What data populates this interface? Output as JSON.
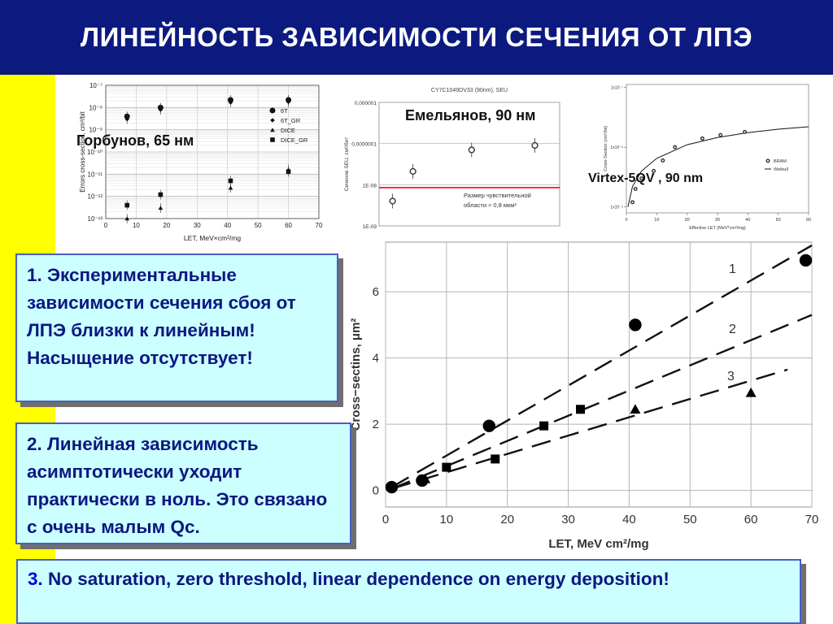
{
  "slide": {
    "title": "ЛИНЕЙНОСТЬ ЗАВИСИМОСТИ СЕЧЕНИЯ ОТ ЛПЭ",
    "colors": {
      "header": "#0c1a80",
      "sidebar": "#ffff00",
      "note_bg": "#ccffff",
      "note_border": "#4a5ec4",
      "note_text": "#0c1880"
    }
  },
  "captions": {
    "gorbunov": "Горбунов, 65 нм",
    "emelyanov": "Емельянов, 90 нм",
    "virtex": "Virtex-5QV , 90 nm"
  },
  "notes": {
    "n1": "1. Экспериментальные зависимости сечения сбоя от ЛПЭ близки к линейным! Насыщение отсутствует!",
    "n2": "2. Линейная зависимость асимптотически уходит практически в ноль. Это связано с очень малым Qc.",
    "n3_num": "3.",
    "n3_text": " No saturation, zero threshold, linear dependence on energy deposition!"
  },
  "chart_data": [
    {
      "type": "scatter",
      "xlabel": "LET, MeV×cm²/mg",
      "ylabel": "Errors cross-section, cm²/bit",
      "log_y": true,
      "xlim": [
        0,
        70
      ],
      "ylim": [
        1e-13,
        1e-07
      ],
      "x_ticks": [
        "0",
        "10",
        "20",
        "30",
        "40",
        "50",
        "60",
        "70"
      ],
      "y_ticks": [
        "10⁻¹³",
        "10⁻¹²",
        "10⁻¹¹",
        "10⁻¹⁰",
        "10⁻⁹",
        "10⁻⁸",
        "10⁻⁷"
      ],
      "legend_position": "right",
      "series": [
        {
          "name": "6T",
          "x": [
            7,
            18,
            41,
            60
          ],
          "y": [
            4e-09,
            1e-08,
            2.2e-08,
            2.2e-08
          ]
        },
        {
          "name": "6T_GR",
          "x": [
            7,
            18,
            41,
            60
          ],
          "y": [
            3e-09,
            8e-09,
            1.7e-08,
            1.8e-08
          ]
        },
        {
          "name": "DICE",
          "x": [
            7,
            18,
            41,
            60
          ],
          "y": [
            1e-13,
            3e-13,
            2.4e-12,
            1.6e-11
          ]
        },
        {
          "name": "DICE_GR",
          "x": [
            7,
            18,
            41,
            60
          ],
          "y": [
            4e-13,
            1.2e-12,
            5e-12,
            1.3e-11
          ]
        }
      ]
    },
    {
      "type": "scatter",
      "title": "CY7C1049DV33 (90nm), SEU",
      "ylabel": "Сечение SEU, см²/бит",
      "xlim": [
        0,
        80
      ],
      "y_ticks": [
        "1E-09",
        "1E-08",
        "0,0000001",
        "0,000001"
      ],
      "annotation": "Размер чувствительной области ≈ 0,8 мкм²",
      "threshold_line_color": "#ff0000",
      "series": [
        {
          "x": [
            6,
            15,
            41,
            69
          ],
          "y": [
            4e-09,
            2.1e-08,
            7e-08,
            9e-08
          ]
        }
      ]
    },
    {
      "type": "scatter",
      "xlabel": "Effective LET (MeV*cm²/mg)",
      "ylabel": "Cross-Section (cm²/bit)",
      "log_y": true,
      "xlim": [
        0,
        60
      ],
      "x_ticks": [
        "0",
        "10",
        "20",
        "30",
        "40",
        "50",
        "60"
      ],
      "y_ticks": [
        "1x10⁻⁷",
        "1x10⁻⁸",
        "1x10⁻⁹"
      ],
      "legend_position": "right",
      "series": [
        {
          "name": "BRAM",
          "x": [
            2,
            3,
            5,
            9,
            12,
            16,
            25,
            31,
            39
          ],
          "y": [
            1.2e-09,
            2e-09,
            3e-09,
            4e-09,
            6e-09,
            1e-08,
            1.4e-08,
            1.6e-08,
            1.8e-08
          ]
        },
        {
          "name": "Weibull",
          "x": [
            0.5,
            2,
            5,
            10,
            20,
            30,
            40,
            50,
            60
          ],
          "y": [
            1e-09,
            2.2e-09,
            4e-09,
            6.5e-09,
            1.1e-08,
            1.45e-08,
            1.75e-08,
            2e-08,
            2.2e-08
          ]
        }
      ]
    },
    {
      "type": "line",
      "xlabel": "LET, MeV cm²/mg",
      "ylabel": "Cross−sectins, μm²",
      "xlim": [
        0,
        70
      ],
      "ylim": [
        -0.5,
        7.5
      ],
      "x_ticks": [
        "0",
        "10",
        "20",
        "30",
        "40",
        "50",
        "60",
        "70"
      ],
      "y_ticks": [
        "0",
        "2",
        "4",
        "6"
      ],
      "series": [
        {
          "name": "1",
          "style": "dashed",
          "x": [
            1,
            70
          ],
          "y": [
            0.1,
            7.4
          ]
        },
        {
          "name": "2",
          "style": "dashed",
          "x": [
            1,
            70
          ],
          "y": [
            0.05,
            5.3
          ]
        },
        {
          "name": "3",
          "style": "dashed",
          "x": [
            1,
            66
          ],
          "y": [
            0.05,
            3.65
          ]
        },
        {
          "name": "circles",
          "style": "markers-circle",
          "x": [
            1,
            6,
            17,
            41,
            69
          ],
          "y": [
            0.1,
            0.3,
            1.95,
            5.0,
            6.95
          ]
        },
        {
          "name": "squares",
          "style": "markers-square",
          "x": [
            1,
            10,
            18,
            26,
            32
          ],
          "y": [
            0.1,
            0.7,
            0.95,
            1.95,
            2.45
          ]
        },
        {
          "name": "triangles",
          "style": "markers-triangle",
          "x": [
            6.5,
            41,
            60
          ],
          "y": [
            0.35,
            2.45,
            2.95
          ]
        }
      ]
    }
  ]
}
